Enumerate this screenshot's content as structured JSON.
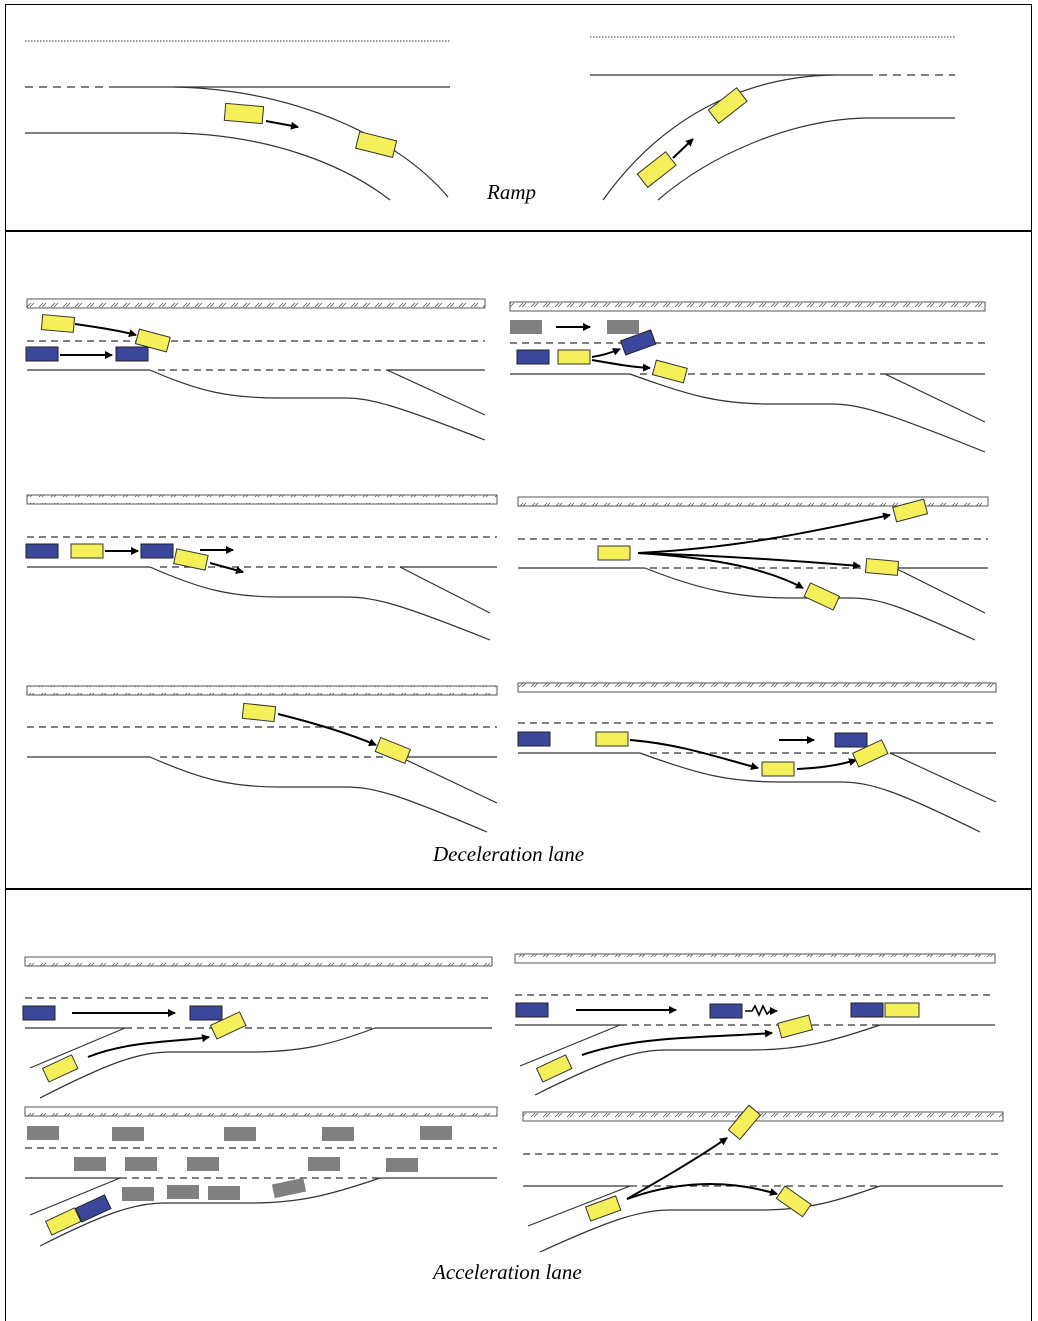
{
  "panels": {
    "ramp": {
      "caption": "Ramp"
    },
    "deceleration": {
      "caption": "Deceleration lane"
    },
    "acceleration": {
      "caption": "Acceleration lane"
    }
  },
  "colors": {
    "subject_vehicle": "#f5ef5a",
    "blue_vehicle": "#3b479a",
    "gray_vehicle": "#808080",
    "road_line": "#333333",
    "arrow": "#000000"
  }
}
